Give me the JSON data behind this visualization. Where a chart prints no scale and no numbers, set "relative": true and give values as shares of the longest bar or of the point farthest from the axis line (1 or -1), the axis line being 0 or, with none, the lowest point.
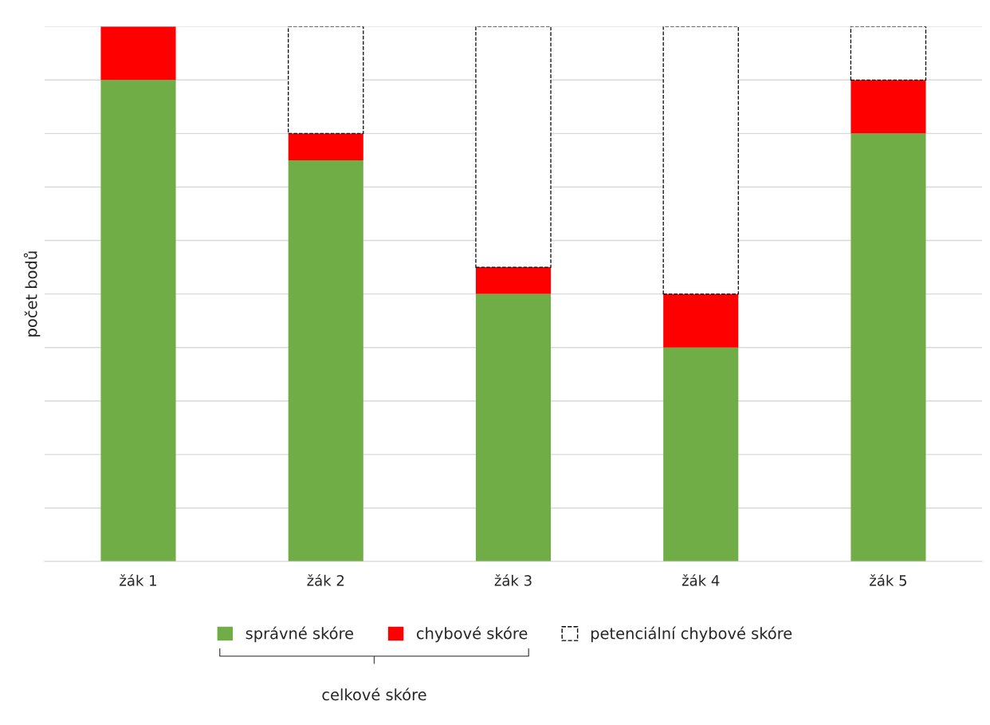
{
  "chart_data": {
    "type": "bar",
    "stacked": true,
    "relative": true,
    "ylabel": "počet bodů",
    "categories": [
      "žák 1",
      "žák 2",
      "žák 3",
      "žák 4",
      "žák 5"
    ],
    "series": [
      {
        "name": "správné skóre",
        "color": "#70ad47",
        "values": [
          0.9,
          0.75,
          0.5,
          0.4,
          0.8
        ]
      },
      {
        "name": "chybové skóre",
        "color": "#ff0000",
        "values": [
          0.1,
          0.05,
          0.05,
          0.1,
          0.1
        ]
      },
      {
        "name": "petenciální chybové skóre",
        "color": "#ffffff",
        "line_style": "dashed",
        "values": [
          0,
          0.2,
          0.45,
          0.5,
          0.1
        ]
      }
    ],
    "grid": "y",
    "legend": "bottom",
    "annotations": [
      "celkové skóre"
    ]
  }
}
